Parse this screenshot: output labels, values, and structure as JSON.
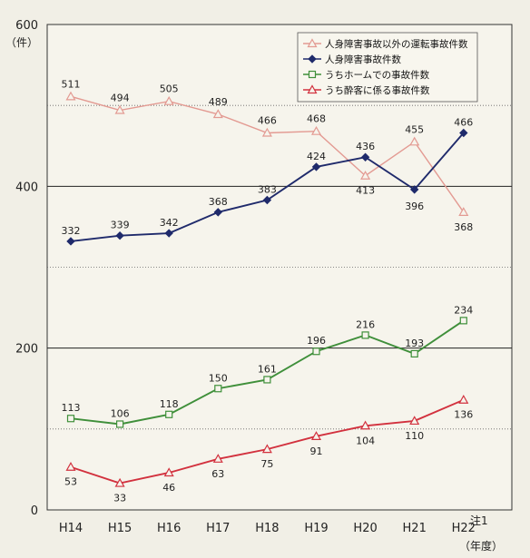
{
  "chart_data": {
    "type": "line",
    "categories": [
      "H14",
      "H15",
      "H16",
      "H17",
      "H18",
      "H19",
      "H20",
      "H21",
      "H22"
    ],
    "last_category_note": "注1",
    "y_unit": "（件）",
    "x_unit": "（年度）",
    "ylim": [
      0,
      600
    ],
    "yticks": [
      0,
      200,
      400,
      600
    ],
    "grid": true,
    "legend_position": "top-right",
    "series": [
      {
        "name": "人身障害事故以外の運転事故件数",
        "values": [
          511,
          494,
          505,
          489,
          466,
          468,
          413,
          455,
          368
        ],
        "color": "#e39a92",
        "marker": "triangle"
      },
      {
        "name": "人身障害事故件数",
        "values": [
          332,
          339,
          342,
          368,
          383,
          424,
          436,
          396,
          466
        ],
        "color": "#1f2a6b",
        "marker": "diamond"
      },
      {
        "name": "うちホームでの事故件数",
        "values": [
          113,
          106,
          118,
          150,
          161,
          196,
          216,
          193,
          234
        ],
        "color": "#3f8f3a",
        "marker": "square"
      },
      {
        "name": "うち酔客に係る事故件数",
        "values": [
          53,
          33,
          46,
          63,
          75,
          91,
          104,
          110,
          136
        ],
        "color": "#d2313e",
        "marker": "triangle"
      }
    ]
  }
}
